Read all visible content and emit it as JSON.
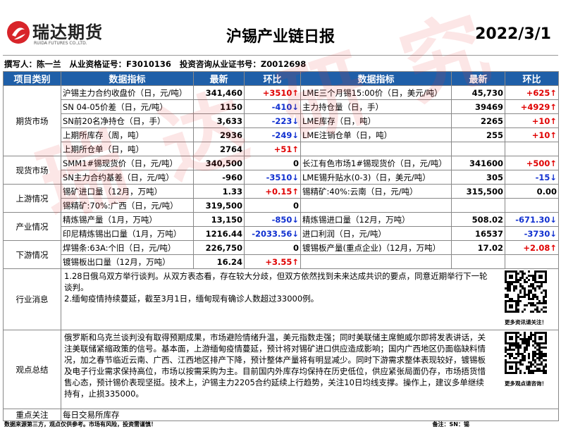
{
  "header": {
    "logo": "瑞达期货",
    "logo_sub": "RUIDA FUTURES CO.,LTD.",
    "title": "沪锡产业链日报",
    "date": "2022/3/1",
    "watermark": "瑞达研究"
  },
  "byline": "撰写人：陈一兰   从业资格证号：F3010136   投资咨询从业证书号：Z0012698",
  "table": {
    "columns": [
      "项目类别",
      "数据指标",
      "最新",
      "环比",
      "数据指标",
      "最新",
      "环比"
    ],
    "sections": [
      {
        "category": "期货市场",
        "rows": [
          [
            "沪锡主力合约收盘价（日，元/吨）",
            "341,460",
            "+3510↑",
            "LME三个月锡15:00价（日，美元/吨）",
            "45,730",
            "+625↑"
          ],
          [
            "SN 04-05价差（日，元/吨）",
            "1150",
            "-410↓",
            "主力持仓量（日，手）",
            "39469",
            "+4929↑"
          ],
          [
            "SN前20名净持仓（日，手）",
            "3,633",
            "-223↓",
            "LME库存（日，吨）",
            "2265",
            "+10↑"
          ],
          [
            "上期所库存（周，吨）",
            "2936",
            "-249↓",
            "LME注销仓单（日，吨）",
            "255",
            "+10↑"
          ],
          [
            "上期所仓单（日，吨）",
            "2764",
            "+51↑"
          ]
        ]
      },
      {
        "category": "现货市场",
        "rows": [
          [
            "SMM1#锡现货价（日，元/吨）",
            "340,500",
            "0",
            "长江有色市场1#锡现货价（日，元/吨）",
            "341600",
            "+500↑"
          ],
          [
            "SN主力合约基差（日，元/吨）",
            "-960",
            "-3510↓",
            "LME锡升贴水(0-3)（日，美元/吨）",
            "305",
            "-15↓"
          ]
        ]
      },
      {
        "category": "上游情况",
        "rows": [
          [
            "锡矿进口量（12月，万吨）",
            "1.33",
            "+0.15↑",
            "锡精矿:40%:云南（日，元/吨）",
            "315,500",
            "0.00"
          ],
          [
            "锡精矿:70%:广西（日，元/吨）",
            "319,500",
            "0"
          ]
        ]
      },
      {
        "category": "产业情况",
        "rows": [
          [
            "精炼锡产量（1月，万吨）",
            "13,150",
            "-850↓",
            "精炼锡进口量（12月，万吨）",
            "508.02",
            "-671.30↓"
          ],
          [
            "印尼精炼锡出口量（1月，万吨）",
            "1216.44",
            "-2033.56↓",
            "进口利润（日，元/吨）",
            "16537",
            "-3730↓"
          ]
        ]
      },
      {
        "category": "下游情况",
        "rows": [
          [
            "焊锡条:63A:个旧（日，元/吨）",
            "226,750",
            "0",
            "镀锡板产量(重点企业)（12月，万吨）",
            "17.02",
            "+2.08↑"
          ],
          [
            "镀锡板出口量（12月，万吨）",
            "16.24",
            "+3.55↑"
          ]
        ]
      }
    ]
  },
  "news": {
    "label": "行业消息",
    "items": [
      "1.28日俄乌双方举行谈判。从双方表态看，存在较大分歧，但双方依然找到未来达成共识的要点，同意近期举行下一轮谈判。",
      "2.缅甸疫情持续蔓延，截至3月1日，缅甸现有确诊人数超过33000例。"
    ],
    "qr_caption": "更多资讯请关注！"
  },
  "summary": {
    "label": "观点总结",
    "text": "俄罗斯和乌克兰谈判没有取得预期成果，市场避险情绪升温，美元指数走强；同时美联储主席鲍威尔即将发表讲话，关注美联储紧缩政策的信号。基本面，上游缅甸疫情蔓延，预计将对锡矿进口供应造成影响；国内广西地区仍面临缺料情况，加之春节临近云南、广西、江西地区排产下降，预计整体产量将有明显减少。同时下游需求整体表现较好，镀锡板及电子行业需求保持高位，市场以按需采购为主。目前国内外库存均保持在历史低位，供应紧张局面仍存，市场捂货惜售心态，预计锡价表现坚挺。技术上，沪锡主力2205合约延续上行趋势，关注10日均线支撑。操作上，建议多单继续持有，止损335000。",
    "qr_caption": "更多观点请咨询！"
  },
  "focus": {
    "label": "重点关注",
    "text": "每日交易所库存"
  },
  "footer": {
    "disclaimer": "数据来源第三方，观点仅供参考。市场有风险，投资需谨慎！",
    "note": "备注：SN：锡"
  }
}
